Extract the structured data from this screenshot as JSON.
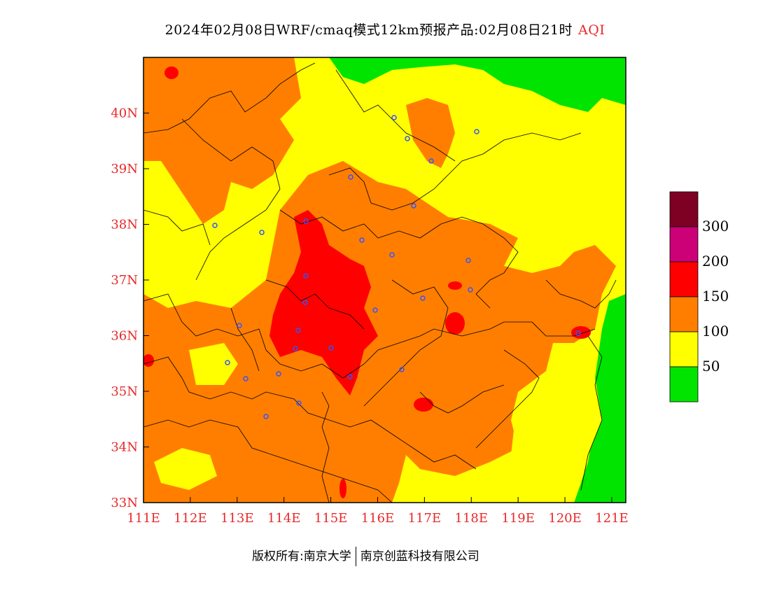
{
  "title": {
    "main": "2024年02月08日WRF/cmaq模式12km预报产品:02月08日21时",
    "variable": "AQI"
  },
  "map": {
    "lat_labels": [
      "40N",
      "39N",
      "38N",
      "37N",
      "36N",
      "35N",
      "34N",
      "33N"
    ],
    "lon_labels": [
      "111E",
      "112E",
      "113E",
      "114E",
      "115E",
      "116E",
      "117E",
      "118E",
      "119E",
      "120E",
      "121E"
    ],
    "lat_range": [
      33,
      41
    ],
    "lon_range": [
      111,
      121.3
    ],
    "axis_label_color": "#e8282a"
  },
  "legend": {
    "labels": [
      "50",
      "100",
      "150",
      "200",
      "300"
    ],
    "colors": [
      {
        "range": "0-50",
        "color": "#00e400"
      },
      {
        "range": "50-100",
        "color": "#ffff00"
      },
      {
        "range": "100-150",
        "color": "#ff7e00"
      },
      {
        "range": "150-200",
        "color": "#ff0000"
      },
      {
        "range": "200-300",
        "color": "#cc0077"
      },
      {
        "range": ">300",
        "color": "#7e0023"
      }
    ]
  },
  "footer": {
    "left": "版权所有:南京大学",
    "right": "南京创蓝科技有限公司"
  }
}
